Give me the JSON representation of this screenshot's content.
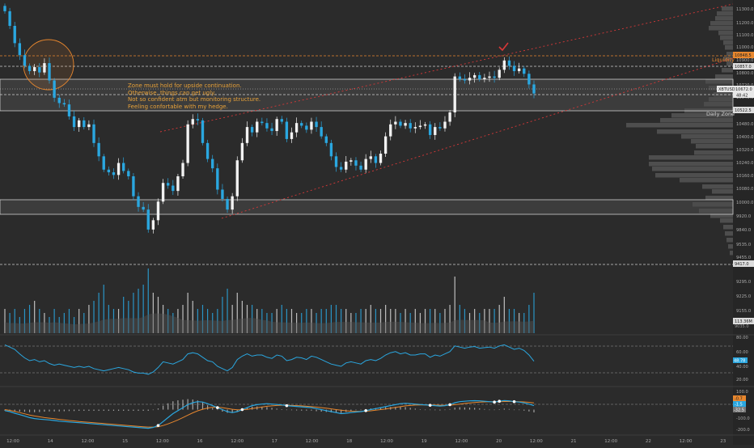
{
  "annotation_lines": [
    "Zone must hold for upside continuation.",
    "Otherwise, things can get ugly.",
    "Not so confident atm but monitoring structure.",
    "Feeling confortable with my hedge."
  ],
  "labels": {
    "liquidity": "Liquidity",
    "daily_zone": "Daily Zone",
    "symbol_tag": "XBTUSD",
    "price_tag": "10672.0",
    "countdown_tag": "48:42",
    "level_top": "10848.5",
    "level_liq": "10857.0",
    "level_zone_bottom": "10522.5",
    "level_lower": "9417.0",
    "volume_value": "113.36M",
    "rsi_value": "48.78",
    "macd_value_1": "-0.7",
    "macd_value_2": "-1.5",
    "macd_value_3": "-32.5"
  },
  "price_axis": [
    "11300.0",
    "11200.0",
    "11100.0",
    "11000.0",
    "10900.0",
    "10800.0",
    "10720.0",
    "10640.0",
    "10560.0",
    "10480.0",
    "10400.0",
    "10320.0",
    "10240.0",
    "10160.0",
    "10080.0",
    "10000.0",
    "9920.0",
    "9840.0",
    "9760.0",
    "9690.0",
    "9615.0",
    "9535.0",
    "9455.0",
    "9375.0",
    "9295.0",
    "9225.0",
    "9155.0",
    "9085.0"
  ],
  "volume_axis": [
    "9035.0"
  ],
  "rsi_axis": [
    "80.00",
    "60.00",
    "40.00",
    "20.00"
  ],
  "macd_axis": [
    "100.0",
    "0.0",
    "-100.0",
    "-200.0"
  ],
  "time_axis": [
    "12:00",
    "14",
    "12:00",
    "15",
    "12:00",
    "16",
    "12:00",
    "17",
    "12:00",
    "18",
    "12:00",
    "19",
    "12:00",
    "20",
    "12:00",
    "21",
    "12:00",
    "22",
    "12:00",
    "23"
  ],
  "chart_data": {
    "type": "candlestick",
    "symbol": "XBTUSD",
    "ylim": [
      9400,
      11350
    ],
    "current_price": 10672.0,
    "zones": [
      {
        "label": "Daily Zone",
        "from": 10522.5,
        "to": 10848.5
      },
      {
        "label": "",
        "from": 9760,
        "to": 9870
      }
    ],
    "levels": [
      10848.5,
      10857.0,
      10522.5,
      9417.0
    ],
    "closes": [
      11290,
      11180,
      11050,
      10960,
      10880,
      10840,
      10870,
      10830,
      10900,
      10770,
      10640,
      10600,
      10590,
      10500,
      10420,
      10470,
      10420,
      10440,
      10300,
      10200,
      10100,
      10080,
      10060,
      10150,
      10090,
      10050,
      9900,
      9820,
      9800,
      9650,
      9720,
      9860,
      10000,
      9980,
      9940,
      10050,
      10150,
      10440,
      10480,
      10470,
      10300,
      10180,
      10110,
      9950,
      9880,
      9800,
      9900,
      10170,
      10300,
      10420,
      10380,
      10460,
      10450,
      10410,
      10390,
      10480,
      10460,
      10330,
      10380,
      10450,
      10430,
      10400,
      10460,
      10420,
      10350,
      10300,
      10200,
      10120,
      10100,
      10160,
      10170,
      10130,
      10100,
      10180,
      10200,
      10150,
      10220,
      10350,
      10440,
      10460,
      10430,
      10450,
      10410,
      10420,
      10430,
      10440,
      10360,
      10420,
      10410,
      10460,
      10530,
      10800,
      10780,
      10770,
      10790,
      10810,
      10780,
      10790,
      10800,
      10790,
      10850,
      10920,
      10880,
      10840,
      10860,
      10820,
      10740,
      10672
    ],
    "volume": [
      0.3,
      0.25,
      0.3,
      0.2,
      0.3,
      0.35,
      0.4,
      0.3,
      0.25,
      0.2,
      0.3,
      0.2,
      0.25,
      0.3,
      0.2,
      0.3,
      0.25,
      0.35,
      0.4,
      0.5,
      0.6,
      0.35,
      0.3,
      0.3,
      0.45,
      0.4,
      0.5,
      0.55,
      0.6,
      0.8,
      0.5,
      0.45,
      0.35,
      0.3,
      0.25,
      0.3,
      0.35,
      0.5,
      0.4,
      0.3,
      0.35,
      0.3,
      0.25,
      0.3,
      0.45,
      0.55,
      0.35,
      0.5,
      0.4,
      0.35,
      0.35,
      0.3,
      0.3,
      0.25,
      0.25,
      0.3,
      0.35,
      0.3,
      0.3,
      0.25,
      0.25,
      0.3,
      0.3,
      0.25,
      0.3,
      0.3,
      0.35,
      0.35,
      0.3,
      0.3,
      0.25,
      0.25,
      0.3,
      0.3,
      0.35,
      0.3,
      0.3,
      0.35,
      0.3,
      0.3,
      0.25,
      0.3,
      0.25,
      0.3,
      0.25,
      0.3,
      0.3,
      0.3,
      0.25,
      0.3,
      0.35,
      0.7,
      0.35,
      0.3,
      0.25,
      0.3,
      0.25,
      0.3,
      0.3,
      0.3,
      0.35,
      0.45,
      0.3,
      0.3,
      0.25,
      0.25,
      0.35,
      0.5
    ],
    "rsi": [
      78,
      74,
      70,
      62,
      55,
      50,
      52,
      48,
      50,
      45,
      42,
      44,
      42,
      40,
      38,
      40,
      38,
      40,
      36,
      34,
      32,
      34,
      36,
      38,
      36,
      34,
      30,
      28,
      28,
      26,
      30,
      38,
      48,
      46,
      44,
      48,
      52,
      62,
      64,
      62,
      56,
      50,
      48,
      40,
      36,
      32,
      38,
      52,
      58,
      62,
      58,
      60,
      60,
      56,
      54,
      60,
      58,
      50,
      52,
      56,
      55,
      52,
      58,
      56,
      52,
      48,
      44,
      42,
      40,
      46,
      48,
      46,
      44,
      50,
      52,
      50,
      54,
      60,
      64,
      66,
      62,
      64,
      60,
      60,
      62,
      62,
      56,
      60,
      58,
      62,
      66,
      76,
      74,
      72,
      74,
      75,
      72,
      73,
      74,
      72,
      76,
      78,
      74,
      70,
      72,
      68,
      60,
      49
    ],
    "macd_line": [
      -5,
      -10,
      -18,
      -25,
      -32,
      -40,
      -45,
      -48,
      -50,
      -52,
      -55,
      -58,
      -60,
      -62,
      -64,
      -66,
      -68,
      -70,
      -72,
      -74,
      -76,
      -78,
      -80,
      -82,
      -84,
      -86,
      -88,
      -90,
      -92,
      -94,
      -90,
      -80,
      -60,
      -40,
      -20,
      -5,
      10,
      25,
      35,
      40,
      38,
      30,
      20,
      10,
      0,
      -10,
      -15,
      -10,
      0,
      10,
      20,
      25,
      28,
      30,
      28,
      26,
      24,
      20,
      18,
      16,
      14,
      12,
      10,
      5,
      0,
      -5,
      -10,
      -15,
      -20,
      -18,
      -15,
      -12,
      -10,
      -5,
      0,
      5,
      10,
      15,
      20,
      25,
      30,
      32,
      30,
      28,
      26,
      24,
      22,
      20,
      18,
      20,
      25,
      35,
      40,
      42,
      44,
      45,
      44,
      42,
      40,
      38,
      42,
      46,
      44,
      40,
      38,
      34,
      28,
      20
    ],
    "macd_signal": [
      0,
      -4,
      -9,
      -15,
      -21,
      -27,
      -32,
      -36,
      -40,
      -43,
      -46,
      -49,
      -52,
      -55,
      -57,
      -60,
      -62,
      -64,
      -66,
      -68,
      -70,
      -72,
      -74,
      -76,
      -78,
      -80,
      -82,
      -84,
      -86,
      -88,
      -88,
      -86,
      -80,
      -72,
      -62,
      -52,
      -40,
      -28,
      -16,
      -6,
      2,
      8,
      12,
      12,
      10,
      6,
      2,
      -1,
      -1,
      1,
      5,
      9,
      13,
      17,
      19,
      21,
      22,
      22,
      21,
      20,
      19,
      17,
      15,
      13,
      10,
      7,
      4,
      0,
      -3,
      -6,
      -8,
      -9,
      -9,
      -8,
      -6,
      -3,
      0,
      3,
      7,
      11,
      15,
      19,
      21,
      23,
      24,
      24,
      24,
      23,
      22,
      22,
      22,
      25,
      28,
      31,
      34,
      36,
      38,
      39,
      40,
      40,
      40,
      41,
      41,
      41,
      40,
      39,
      37,
      34
    ]
  }
}
